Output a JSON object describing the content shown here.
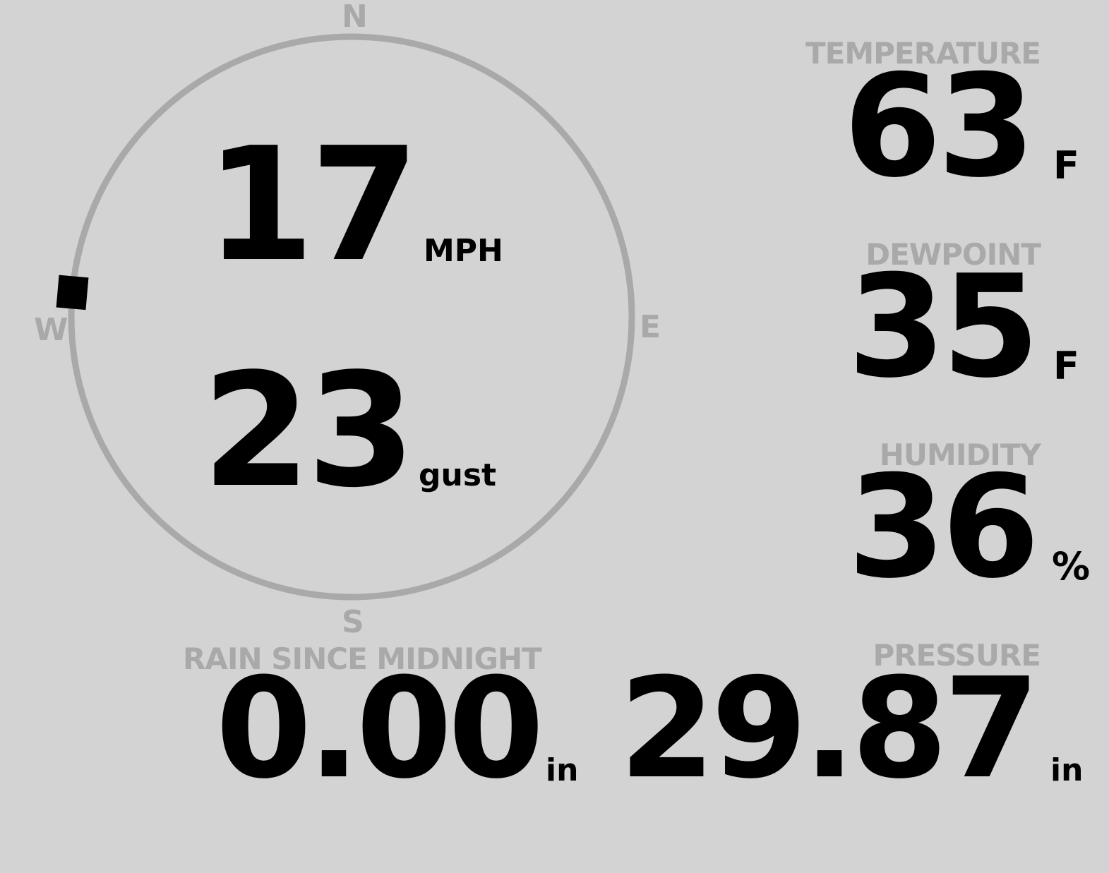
{
  "compass": {
    "north": "N",
    "south": "S",
    "east": "E",
    "west": "W",
    "direction_degrees": 275
  },
  "wind": {
    "speed": "17",
    "speed_unit": "MPH",
    "gust": "23",
    "gust_label": "gust"
  },
  "temperature": {
    "label": "TEMPERATURE",
    "value": "63",
    "unit": "F"
  },
  "dewpoint": {
    "label": "DEWPOINT",
    "value": "35",
    "unit": "F"
  },
  "humidity": {
    "label": "HUMIDITY",
    "value": "36",
    "unit": "%"
  },
  "rain": {
    "label": "RAIN SINCE MIDNIGHT",
    "value": "0.00",
    "unit": "in"
  },
  "pressure": {
    "label": "PRESSURE",
    "value": "29.87",
    "unit": "in"
  },
  "colors": {
    "background": "#d3d3d3",
    "label": "#a9a9a9",
    "value": "#000000"
  }
}
